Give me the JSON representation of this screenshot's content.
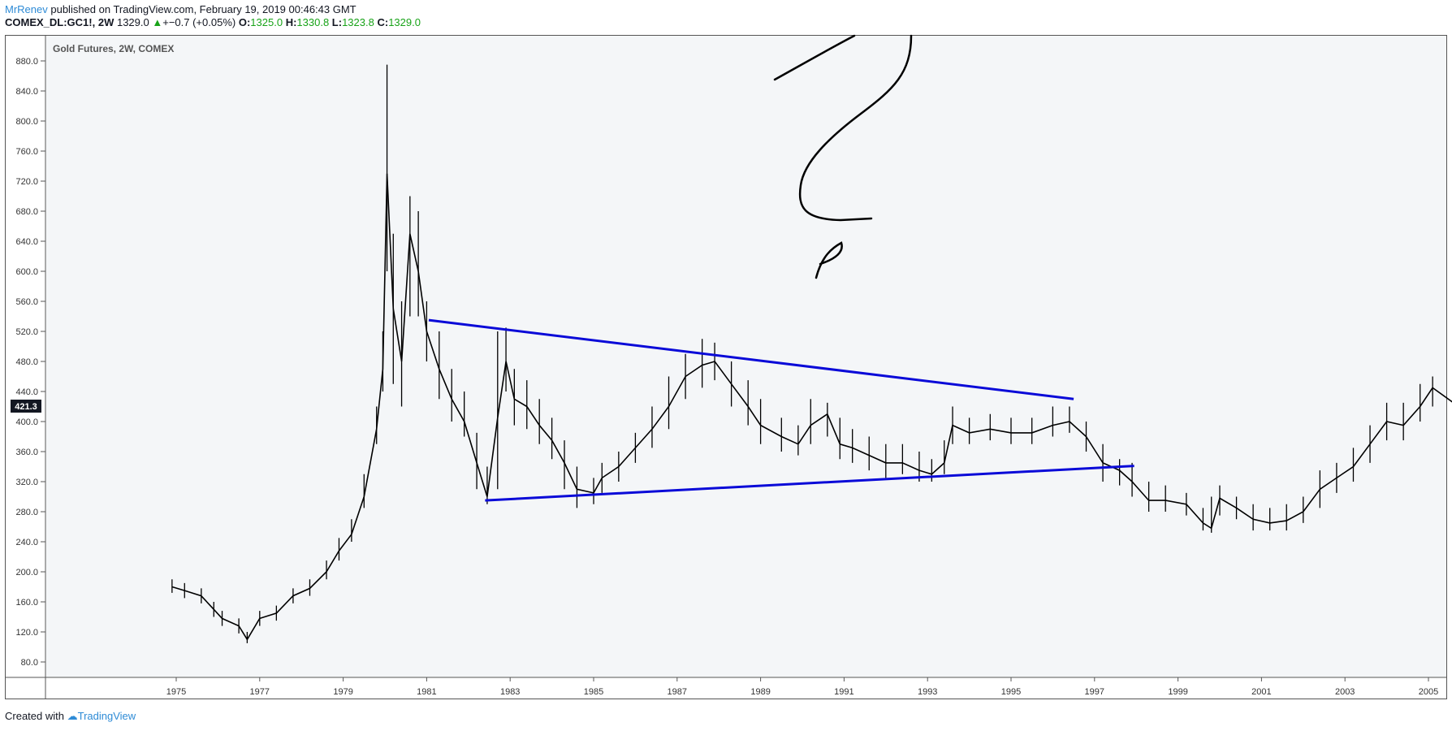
{
  "header": {
    "author": "MrRenev",
    "published_text": " published on TradingView.com, February 19, 2019 00:46:43 GMT",
    "symbol": "COMEX_DL:GC1!, 2W",
    "last": "1329.0",
    "change": "+−0.7 (+0.05%)",
    "open_label": "O:",
    "open": "1325.0",
    "high_label": "H:",
    "high": "1330.8",
    "low_label": "L:",
    "low": "1323.8",
    "close_label": "C:",
    "close": "1329.0",
    "up_color": "#18a318"
  },
  "chart_title": "Gold Futures, 2W, COMEX",
  "price_badge": "421.3",
  "footer": {
    "created": "Created with",
    "brand": "TradingView"
  },
  "colors": {
    "trendline": "#0a0ad8",
    "candles": "#000000",
    "background": "#f4f6f8"
  },
  "chart_data": {
    "type": "line",
    "title": "Gold Futures, 2W, COMEX",
    "xlabel": "",
    "ylabel": "",
    "ylim": [
      60,
      900
    ],
    "xlim": [
      1972.0,
      2005.6
    ],
    "yticks": [
      80,
      120,
      160,
      200,
      240,
      280,
      320,
      360,
      400,
      440,
      480,
      520,
      560,
      600,
      640,
      680,
      720,
      760,
      800,
      840,
      880
    ],
    "xticks": [
      "1975",
      "1977",
      "1979",
      "1981",
      "1983",
      "1985",
      "1987",
      "1989",
      "1991",
      "1993",
      "1995",
      "1997",
      "1999",
      "2001",
      "2003",
      "2005"
    ],
    "grid": false,
    "series": [
      {
        "x": [
          1974.9,
          1975.2,
          1975.6,
          1975.9,
          1976.1,
          1976.5,
          1976.7,
          1977.0,
          1977.4,
          1977.8,
          1978.2,
          1978.6,
          1978.9,
          1979.2,
          1979.5,
          1979.8,
          1979.95,
          1980.05,
          1980.2,
          1980.4,
          1980.6,
          1980.8,
          1981.0,
          1981.3,
          1981.6,
          1981.9,
          1982.2,
          1982.45,
          1982.7,
          1982.9,
          1983.1,
          1983.4,
          1983.7,
          1984.0,
          1984.3,
          1984.6,
          1985.0,
          1985.2,
          1985.6,
          1986.0,
          1986.4,
          1986.8,
          1987.2,
          1987.6,
          1987.9,
          1988.3,
          1988.7,
          1989.0,
          1989.5,
          1989.9,
          1990.2,
          1990.6,
          1990.9,
          1991.2,
          1991.6,
          1992.0,
          1992.4,
          1992.8,
          1993.1,
          1993.4,
          1993.6,
          1994.0,
          1994.5,
          1995.0,
          1995.5,
          1996.0,
          1996.4,
          1996.8,
          1997.2,
          1997.6,
          1997.9,
          1998.3,
          1998.7,
          1999.2,
          1999.6,
          1999.8,
          2000.0,
          2000.4,
          2000.8,
          2001.2,
          2001.6,
          2002.0,
          2002.4,
          2002.8,
          2003.2,
          2003.6,
          2004.0,
          2004.4,
          2004.8,
          2005.1,
          2005.6
        ],
        "values": [
          180,
          175,
          168,
          150,
          138,
          128,
          110,
          138,
          145,
          168,
          178,
          200,
          228,
          250,
          300,
          390,
          470,
          730,
          550,
          480,
          650,
          600,
          520,
          470,
          430,
          400,
          345,
          300,
          405,
          480,
          430,
          420,
          395,
          375,
          345,
          310,
          305,
          325,
          340,
          365,
          390,
          420,
          460,
          475,
          480,
          450,
          420,
          395,
          380,
          370,
          395,
          410,
          370,
          365,
          355,
          345,
          345,
          335,
          330,
          345,
          395,
          385,
          390,
          385,
          385,
          395,
          400,
          380,
          345,
          335,
          320,
          295,
          295,
          290,
          265,
          258,
          298,
          285,
          270,
          265,
          268,
          280,
          310,
          325,
          340,
          370,
          400,
          395,
          420,
          445,
          425
        ],
        "highs": [
          190,
          185,
          178,
          160,
          148,
          138,
          120,
          148,
          155,
          178,
          190,
          215,
          245,
          270,
          330,
          420,
          520,
          875,
          650,
          560,
          700,
          680,
          560,
          520,
          470,
          440,
          385,
          340,
          520,
          525,
          470,
          455,
          430,
          405,
          375,
          340,
          325,
          345,
          360,
          385,
          420,
          460,
          490,
          510,
          505,
          480,
          455,
          430,
          405,
          395,
          430,
          425,
          405,
          390,
          380,
          370,
          370,
          360,
          350,
          375,
          420,
          405,
          410,
          405,
          405,
          420,
          420,
          400,
          370,
          350,
          345,
          320,
          315,
          305,
          285,
          300,
          315,
          300,
          290,
          285,
          290,
          300,
          335,
          345,
          365,
          395,
          425,
          425,
          450,
          460,
          445
        ],
        "lows": [
          172,
          165,
          158,
          140,
          128,
          118,
          105,
          128,
          135,
          158,
          168,
          190,
          215,
          240,
          285,
          370,
          440,
          600,
          450,
          420,
          540,
          540,
          480,
          430,
          400,
          380,
          310,
          290,
          310,
          440,
          395,
          390,
          370,
          350,
          310,
          285,
          290,
          305,
          320,
          345,
          365,
          390,
          430,
          445,
          455,
          420,
          395,
          370,
          360,
          355,
          370,
          380,
          350,
          345,
          335,
          325,
          330,
          320,
          320,
          330,
          370,
          370,
          375,
          370,
          370,
          380,
          385,
          360,
          320,
          315,
          300,
          280,
          280,
          275,
          255,
          252,
          275,
          270,
          255,
          255,
          255,
          265,
          285,
          305,
          320,
          345,
          375,
          375,
          400,
          420,
          405
        ]
      }
    ],
    "trendlines": [
      {
        "x": [
          1981.05,
          1996.5
        ],
        "values": [
          535,
          430
        ]
      },
      {
        "x": [
          1982.4,
          1997.95
        ],
        "values": [
          295,
          341
        ]
      }
    ]
  }
}
